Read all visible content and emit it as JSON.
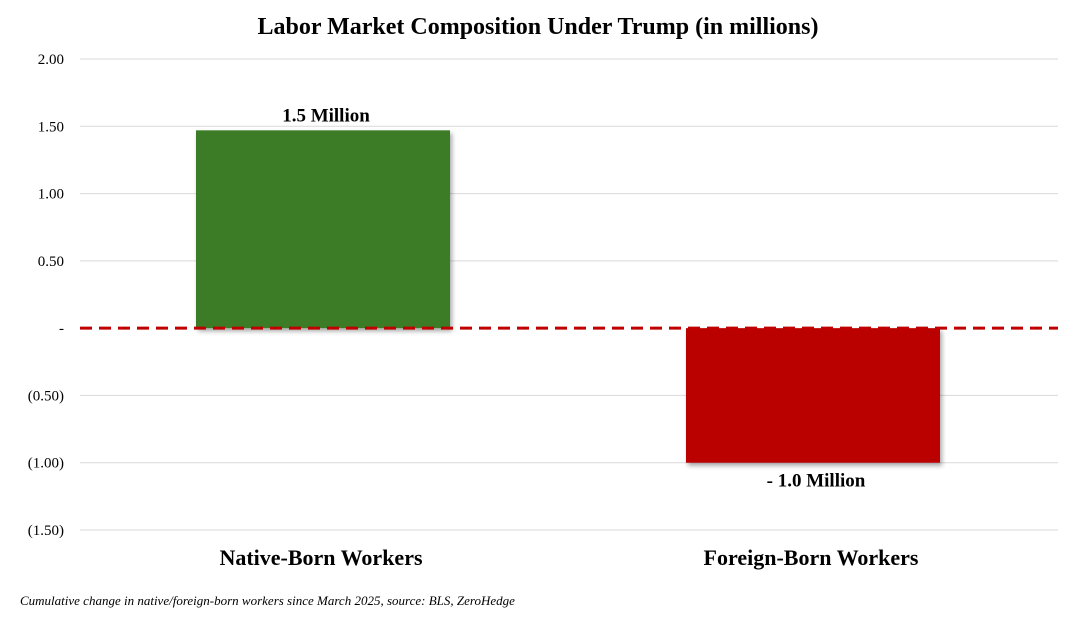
{
  "chart_data": {
    "type": "bar",
    "title": "Labor Market Composition Under Trump (in millions)",
    "categories": [
      "Native-Born Workers",
      "Foreign-Born Workers"
    ],
    "values": [
      1.47,
      -1.0
    ],
    "data_labels": [
      "1.5 Million",
      "- 1.0 Million"
    ],
    "bar_colors": [
      "#3e7b25",
      "#bb0000"
    ],
    "ylim": [
      -1.5,
      2.0
    ],
    "yticks": [
      2.0,
      1.5,
      1.0,
      0.5,
      0.0,
      -0.5,
      -1.0,
      -1.5
    ],
    "ytick_labels": [
      "2.00",
      "1.50",
      "1.00",
      "0.50",
      "-",
      "(0.50)",
      "(1.00)",
      "(1.50)"
    ],
    "grid": true,
    "zero_line": {
      "style": "dashed",
      "color": "#c00000"
    },
    "xlabel": "",
    "ylabel": "",
    "legend": "none"
  },
  "footnote": "Cumulative change in native/foreign-born workers since March 2025, source: BLS, ZeroHedge"
}
